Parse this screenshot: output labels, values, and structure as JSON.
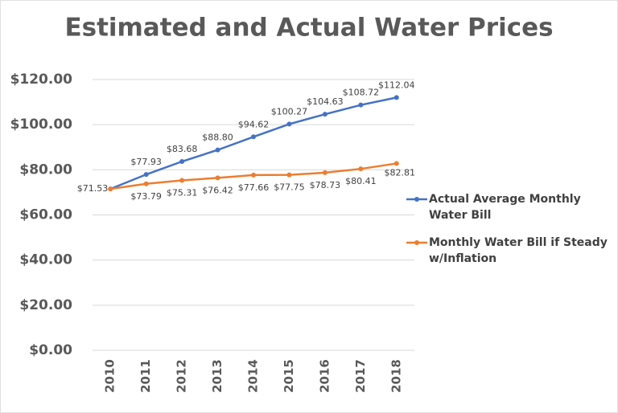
{
  "chart_data": {
    "type": "line",
    "title": "Estimated and Actual Water Prices",
    "categories": [
      "2010",
      "2011",
      "2012",
      "2013",
      "2014",
      "2015",
      "2016",
      "2017",
      "2018"
    ],
    "series": [
      {
        "name": "Actual Average Monthly Water Bill",
        "color": "#4472c4",
        "values": [
          71.53,
          77.93,
          83.68,
          88.8,
          94.62,
          100.27,
          104.63,
          108.72,
          112.04
        ],
        "value_labels": [
          "$71.53",
          "$77.93",
          "$83.68",
          "$88.80",
          "$94.62",
          "$100.27",
          "$104.63",
          "$108.72",
          "$112.04"
        ]
      },
      {
        "name": "Monthly Water Bill if Steady w/Inflation",
        "color": "#ed7d31",
        "values": [
          71.53,
          73.79,
          75.31,
          76.42,
          77.66,
          77.75,
          78.73,
          80.41,
          82.81
        ],
        "value_labels": [
          null,
          "$73.79",
          "$75.31",
          "$76.42",
          "$77.66",
          "$77.75",
          "$78.73",
          "$80.41",
          "$82.81"
        ]
      }
    ],
    "ylim": [
      0,
      120
    ],
    "yticks": [
      {
        "value": 0,
        "label": "$0.00"
      },
      {
        "value": 20,
        "label": "$20.00"
      },
      {
        "value": 40,
        "label": "$40.00"
      },
      {
        "value": 60,
        "label": "$60.00"
      },
      {
        "value": 80,
        "label": "$80.00"
      },
      {
        "value": 100,
        "label": "$100.00"
      },
      {
        "value": 120,
        "label": "$120.00"
      }
    ],
    "grid": true,
    "legend": "right"
  }
}
